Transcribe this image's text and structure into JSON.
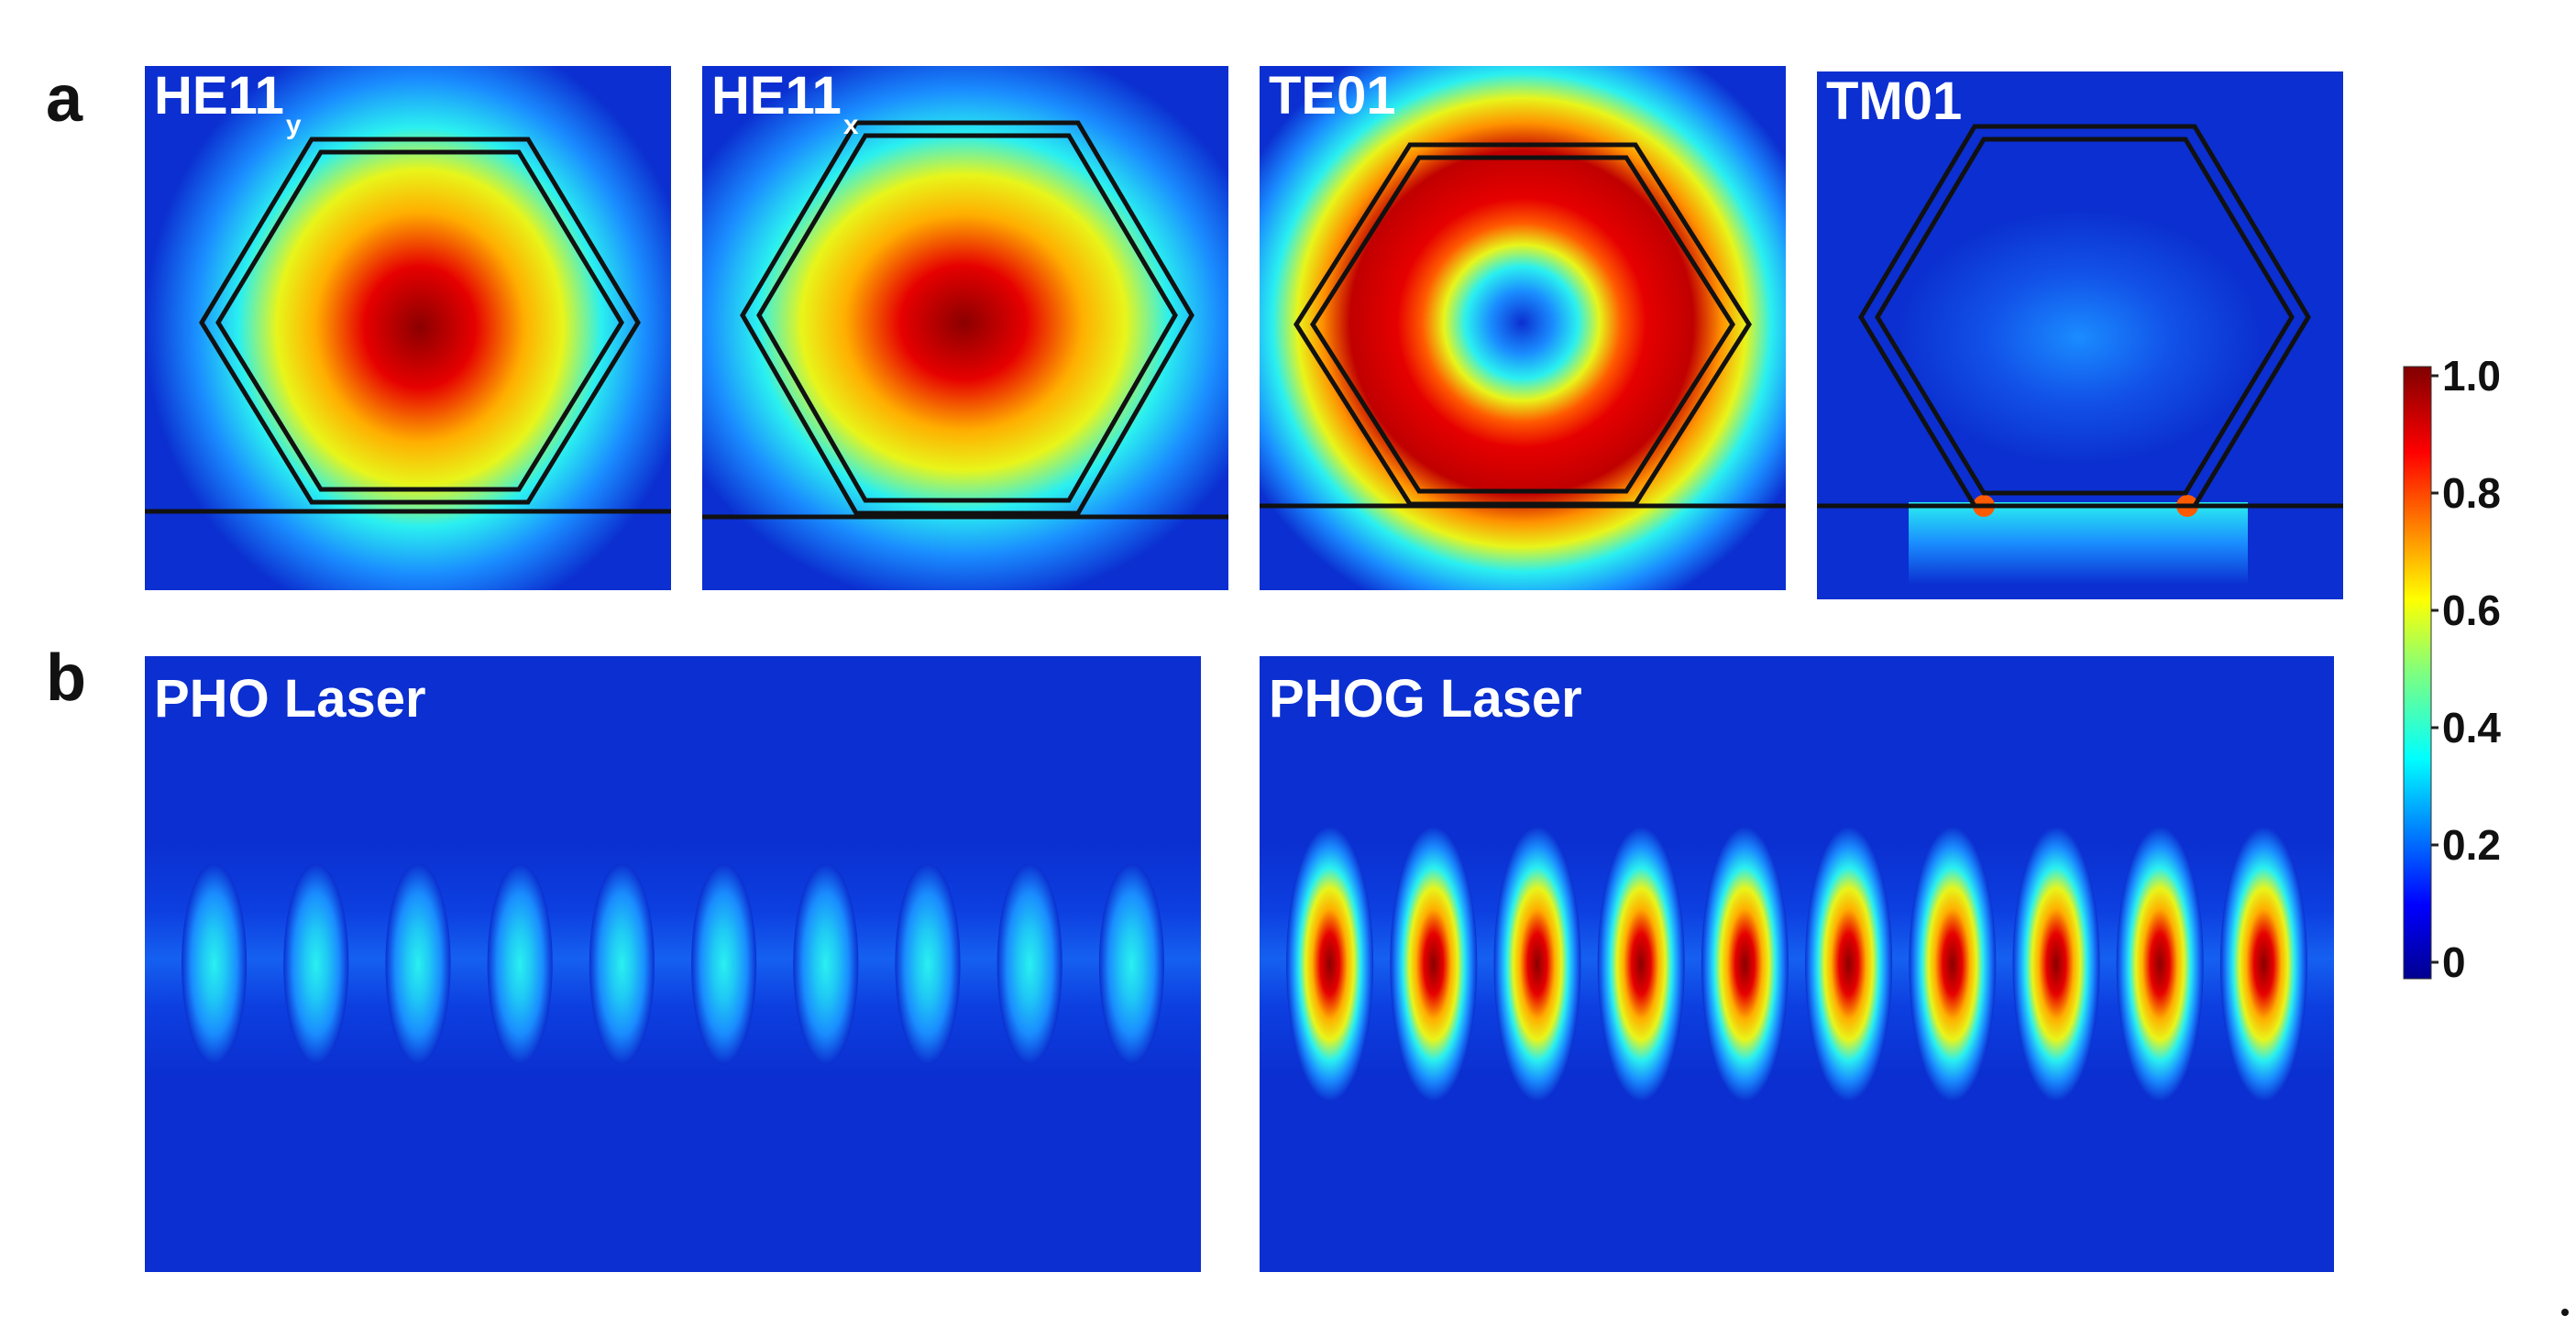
{
  "panel_a": {
    "letter": "a",
    "modes": [
      {
        "name": "HE11",
        "subscript": "y"
      },
      {
        "name": "HE11",
        "subscript": "x"
      },
      {
        "name": "TE01",
        "subscript": ""
      },
      {
        "name": "TM01",
        "subscript": ""
      }
    ]
  },
  "panel_b": {
    "letter": "b",
    "lasers": [
      {
        "name": "PHO Laser",
        "lobes": 10,
        "peak": 0.38
      },
      {
        "name": "PHOG Laser",
        "lobes": 10,
        "peak": 1.0
      }
    ]
  },
  "colorbar": {
    "colormap": "jet",
    "min": 0,
    "max": 1,
    "tick_labels": [
      "1.0",
      "0.8",
      "0.6",
      "0.4",
      "0.2",
      "0"
    ]
  },
  "colors": {
    "background_field": "#0b2fd0",
    "label_text": "#ffffff"
  }
}
